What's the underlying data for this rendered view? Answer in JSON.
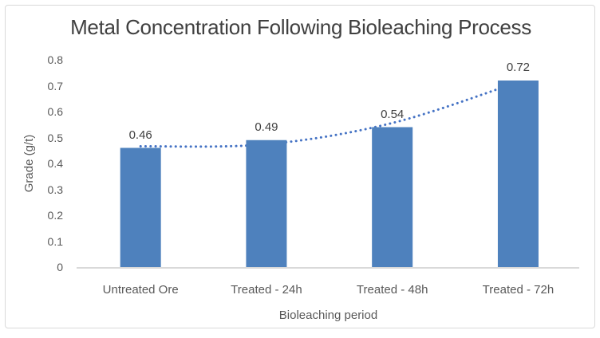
{
  "chart_data": {
    "type": "bar",
    "title": "Metal Concentration Following Bioleaching Process",
    "xlabel": "Bioleaching period",
    "ylabel": "Grade (g/t)",
    "categories": [
      "Untreated Ore",
      "Treated - 24h",
      "Treated - 48h",
      "Treated - 72h"
    ],
    "values": [
      0.46,
      0.49,
      0.54,
      0.72
    ],
    "data_labels": [
      "0.46",
      "0.49",
      "0.54",
      "0.72"
    ],
    "ylim": [
      0,
      0.8
    ],
    "yticks": [
      "0",
      "0.1",
      "0.2",
      "0.3",
      "0.4",
      "0.5",
      "0.6",
      "0.7",
      "0.8"
    ],
    "grid": false,
    "legend": false,
    "bar_color": "#4E81BD",
    "trendline": {
      "style": "dotted",
      "color": "#4472C4",
      "fit_values": [
        0.466,
        0.474,
        0.556,
        0.714
      ]
    },
    "colors": {
      "title_text": "#404040",
      "axis_text": "#595959",
      "data_label_text": "#404040",
      "axis_line": "#D9D9D9",
      "border": "#D9D9D9",
      "background": "#FFFFFF"
    }
  }
}
